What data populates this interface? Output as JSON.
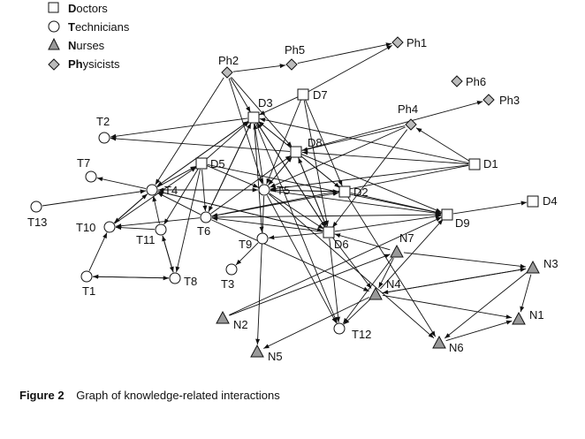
{
  "legend": [
    {
      "shape": "square",
      "initial": "D",
      "rest": "octors"
    },
    {
      "shape": "circle",
      "initial": "T",
      "rest": "echnicians"
    },
    {
      "shape": "triangle",
      "initial": "N",
      "rest": "urses"
    },
    {
      "shape": "diamond",
      "initial": "Ph",
      "rest": "ysicists"
    }
  ],
  "nodes": [
    {
      "id": "Ph1",
      "type": "diamond"
    },
    {
      "id": "Ph2",
      "type": "diamond"
    },
    {
      "id": "Ph3",
      "type": "diamond"
    },
    {
      "id": "Ph4",
      "type": "diamond"
    },
    {
      "id": "Ph5",
      "type": "diamond"
    },
    {
      "id": "Ph6",
      "type": "diamond"
    },
    {
      "id": "D1",
      "type": "square"
    },
    {
      "id": "D2",
      "type": "square"
    },
    {
      "id": "D3",
      "type": "square"
    },
    {
      "id": "D4",
      "type": "square"
    },
    {
      "id": "D5",
      "type": "square"
    },
    {
      "id": "D6",
      "type": "square"
    },
    {
      "id": "D7",
      "type": "square"
    },
    {
      "id": "D8",
      "type": "square"
    },
    {
      "id": "D9",
      "type": "square"
    },
    {
      "id": "T1",
      "type": "circle"
    },
    {
      "id": "T2",
      "type": "circle"
    },
    {
      "id": "T3",
      "type": "circle"
    },
    {
      "id": "T4",
      "type": "circle"
    },
    {
      "id": "T5",
      "type": "circle"
    },
    {
      "id": "T6",
      "type": "circle"
    },
    {
      "id": "T7",
      "type": "circle"
    },
    {
      "id": "T8",
      "type": "circle"
    },
    {
      "id": "T9",
      "type": "circle"
    },
    {
      "id": "T10",
      "type": "circle"
    },
    {
      "id": "T11",
      "type": "circle"
    },
    {
      "id": "T12",
      "type": "circle"
    },
    {
      "id": "T13",
      "type": "circle"
    },
    {
      "id": "N1",
      "type": "triangle"
    },
    {
      "id": "N2",
      "type": "triangle"
    },
    {
      "id": "N3",
      "type": "triangle"
    },
    {
      "id": "N4",
      "type": "triangle"
    },
    {
      "id": "N5",
      "type": "triangle"
    },
    {
      "id": "N6",
      "type": "triangle"
    },
    {
      "id": "N7",
      "type": "triangle"
    }
  ],
  "edges": [
    [
      "Ph5",
      "Ph1"
    ],
    [
      "D7",
      "Ph1"
    ],
    [
      "Ph2",
      "Ph5"
    ],
    [
      "Ph2",
      "D3"
    ],
    [
      "Ph2",
      "T4"
    ],
    [
      "Ph2",
      "D8"
    ],
    [
      "Ph2",
      "T5"
    ],
    [
      "D7",
      "D3"
    ],
    [
      "D7",
      "D2"
    ],
    [
      "D7",
      "D6"
    ],
    [
      "D7",
      "T5"
    ],
    [
      "D3",
      "T2"
    ],
    [
      "D3",
      "T4"
    ],
    [
      "D3",
      "T6"
    ],
    [
      "D3",
      "D6"
    ],
    [
      "D3",
      "T9"
    ],
    [
      "D3",
      "T12"
    ],
    [
      "D8",
      "D3"
    ],
    [
      "D8",
      "T5"
    ],
    [
      "D8",
      "D6"
    ],
    [
      "D8",
      "D9"
    ],
    [
      "D8",
      "D2"
    ],
    [
      "D8",
      "Ph3"
    ],
    [
      "D8",
      "T2"
    ],
    [
      "D1",
      "D3"
    ],
    [
      "D1",
      "D8"
    ],
    [
      "D1",
      "Ph4"
    ],
    [
      "D1",
      "T5"
    ],
    [
      "D1",
      "T6"
    ],
    [
      "D9",
      "D4"
    ],
    [
      "Ph4",
      "T5"
    ],
    [
      "Ph4",
      "D6"
    ],
    [
      "Ph4",
      "D8"
    ],
    [
      "D5",
      "D3"
    ],
    [
      "D5",
      "T8"
    ],
    [
      "D5",
      "T11"
    ],
    [
      "D5",
      "T5"
    ],
    [
      "D5",
      "D9"
    ],
    [
      "D5",
      "T6"
    ],
    [
      "T4",
      "D3"
    ],
    [
      "T4",
      "T10"
    ],
    [
      "T4",
      "T5"
    ],
    [
      "T4",
      "D6"
    ],
    [
      "T4",
      "T7"
    ],
    [
      "T4",
      "D5"
    ],
    [
      "T5",
      "D3"
    ],
    [
      "T5",
      "D8"
    ],
    [
      "T5",
      "D2"
    ],
    [
      "T5",
      "D9"
    ],
    [
      "T5",
      "D6"
    ],
    [
      "T5",
      "T12"
    ],
    [
      "T5",
      "N5"
    ],
    [
      "T5",
      "N6"
    ],
    [
      "T5",
      "T4"
    ],
    [
      "D2",
      "T5"
    ],
    [
      "D2",
      "D3"
    ],
    [
      "D2",
      "N6"
    ],
    [
      "D2",
      "D9"
    ],
    [
      "T6",
      "T10"
    ],
    [
      "T6",
      "T4"
    ],
    [
      "T6",
      "D3"
    ],
    [
      "T6",
      "D8"
    ],
    [
      "T6",
      "D2"
    ],
    [
      "T6",
      "D9"
    ],
    [
      "T6",
      "N4"
    ],
    [
      "T13",
      "T4"
    ],
    [
      "T10",
      "T4"
    ],
    [
      "T10",
      "D5"
    ],
    [
      "T11",
      "T10"
    ],
    [
      "T11",
      "T8"
    ],
    [
      "T11",
      "T4"
    ],
    [
      "T8",
      "T11"
    ],
    [
      "T8",
      "T1"
    ],
    [
      "T1",
      "T8"
    ],
    [
      "T1",
      "T10"
    ],
    [
      "D6",
      "T9"
    ],
    [
      "D6",
      "D8"
    ],
    [
      "D6",
      "T4"
    ],
    [
      "D6",
      "D3"
    ],
    [
      "D6",
      "D9"
    ],
    [
      "D6",
      "T12"
    ],
    [
      "D6",
      "N4"
    ],
    [
      "D6",
      "T6"
    ],
    [
      "T9",
      "T3"
    ],
    [
      "N7",
      "D6"
    ],
    [
      "N7",
      "N3"
    ],
    [
      "N7",
      "T12"
    ],
    [
      "N7",
      "N4"
    ],
    [
      "N2",
      "N7"
    ],
    [
      "N4",
      "N1"
    ],
    [
      "N4",
      "N3"
    ],
    [
      "N4",
      "T12"
    ],
    [
      "N4",
      "N5"
    ],
    [
      "N3",
      "N4"
    ],
    [
      "N3",
      "N1"
    ],
    [
      "N3",
      "N6"
    ],
    [
      "N6",
      "N1"
    ],
    [
      "N2",
      "D9"
    ],
    [
      "N4",
      "D9"
    ]
  ],
  "caption": {
    "figure": "Figure 2",
    "text": "Graph of knowledge-related interactions"
  }
}
